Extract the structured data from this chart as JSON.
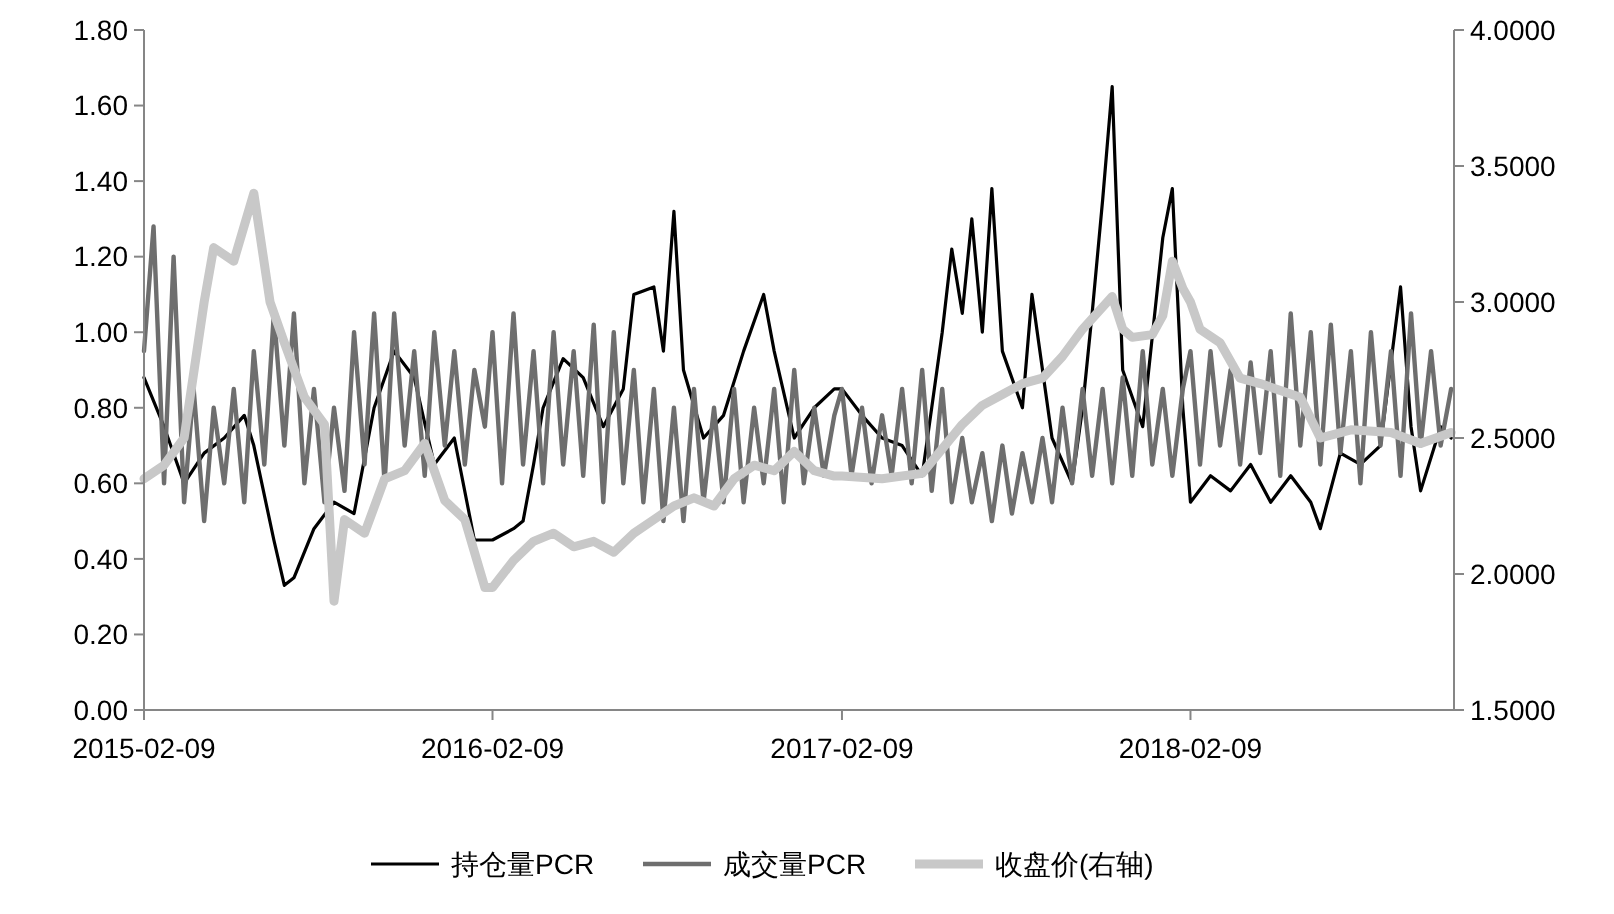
{
  "chart_data": {
    "type": "line",
    "legend": "bottom",
    "xlim": [
      "2015-02-09",
      "2018-11-12"
    ],
    "xticks": [
      {
        "value": "2015-02-09",
        "label": "2015-02-09"
      },
      {
        "value": "2016-02-09",
        "label": "2016-02-09"
      },
      {
        "value": "2017-02-09",
        "label": "2017-02-09"
      },
      {
        "value": "2018-02-09",
        "label": "2018-02-09"
      }
    ],
    "ylim": [
      0,
      1.8
    ],
    "yticks": [
      {
        "value": 0,
        "label": "0.00"
      },
      {
        "value": 0.2,
        "label": "0.20"
      },
      {
        "value": 0.4,
        "label": "0.40"
      },
      {
        "value": 0.6,
        "label": "0.60"
      },
      {
        "value": 0.8,
        "label": "0.80"
      },
      {
        "value": 1,
        "label": "1.00"
      },
      {
        "value": 1.2,
        "label": "1.20"
      },
      {
        "value": 1.4,
        "label": "1.40"
      },
      {
        "value": 1.6,
        "label": "1.60"
      },
      {
        "value": 1.8,
        "label": "1.80"
      }
    ],
    "y2lim": [
      1.5,
      4
    ],
    "y2ticks": [
      {
        "value": 1.5,
        "label": "1.5000"
      },
      {
        "value": 2,
        "label": "2.0000"
      },
      {
        "value": 2.5,
        "label": "2.5000"
      },
      {
        "value": 3,
        "label": "3.0000"
      },
      {
        "value": 3.5,
        "label": "3.5000"
      },
      {
        "value": 4,
        "label": "4.0000"
      }
    ],
    "series": [
      {
        "name": "持仓量PCR",
        "color": "#000000",
        "x": [
          "2015-02-09",
          "2015-03-02",
          "2015-03-23",
          "2015-04-13",
          "2015-05-04",
          "2015-05-25",
          "2015-06-04",
          "2015-06-25",
          "2015-07-06",
          "2015-07-16",
          "2015-08-06",
          "2015-08-27",
          "2015-09-17",
          "2015-10-08",
          "2015-10-29",
          "2015-11-19",
          "2015-12-10",
          "2015-12-31",
          "2016-01-21",
          "2016-02-09",
          "2016-03-02",
          "2016-03-12",
          "2016-03-23",
          "2016-04-02",
          "2016-04-23",
          "2016-05-14",
          "2016-06-04",
          "2016-06-25",
          "2016-07-06",
          "2016-07-27",
          "2016-08-06",
          "2016-08-17",
          "2016-08-27",
          "2016-09-17",
          "2016-10-08",
          "2016-10-29",
          "2016-11-19",
          "2016-11-30",
          "2016-12-21",
          "2017-01-11",
          "2017-02-01",
          "2017-02-09",
          "2017-03-02",
          "2017-03-23",
          "2017-04-13",
          "2017-05-04",
          "2017-05-14",
          "2017-05-25",
          "2017-06-04",
          "2017-06-15",
          "2017-06-25",
          "2017-07-06",
          "2017-07-16",
          "2017-07-27",
          "2017-08-17",
          "2017-08-27",
          "2017-09-17",
          "2017-10-08",
          "2017-10-19",
          "2017-10-29",
          "2017-11-09",
          "2017-11-19",
          "2017-11-30",
          "2017-12-21",
          "2018-01-11",
          "2018-01-21",
          "2018-02-01",
          "2018-02-09",
          "2018-03-02",
          "2018-03-23",
          "2018-04-13",
          "2018-05-04",
          "2018-05-25",
          "2018-06-15",
          "2018-06-25",
          "2018-07-16",
          "2018-08-06",
          "2018-08-27",
          "2018-09-17",
          "2018-09-28",
          "2018-10-08",
          "2018-10-29",
          "2018-11-09"
        ],
        "values": [
          0.88,
          0.75,
          0.6,
          0.68,
          0.72,
          0.78,
          0.7,
          0.45,
          0.33,
          0.35,
          0.48,
          0.55,
          0.52,
          0.8,
          0.95,
          0.88,
          0.65,
          0.72,
          0.45,
          0.45,
          0.48,
          0.5,
          0.65,
          0.8,
          0.93,
          0.88,
          0.75,
          0.85,
          1.1,
          1.12,
          0.95,
          1.32,
          0.9,
          0.72,
          0.78,
          0.95,
          1.1,
          0.95,
          0.72,
          0.8,
          0.85,
          0.85,
          0.78,
          0.72,
          0.7,
          0.62,
          0.8,
          1.0,
          1.22,
          1.05,
          1.3,
          1.0,
          1.38,
          0.95,
          0.8,
          1.1,
          0.72,
          0.6,
          0.8,
          1.05,
          1.35,
          1.65,
          0.9,
          0.75,
          1.25,
          1.38,
          0.8,
          0.55,
          0.62,
          0.58,
          0.65,
          0.55,
          0.62,
          0.55,
          0.48,
          0.68,
          0.65,
          0.7,
          1.12,
          0.75,
          0.58,
          0.75,
          0.72
        ]
      },
      {
        "name": "成交量PCR",
        "color": "#6e6e6e",
        "x": [
          "2015-02-09",
          "2015-02-19",
          "2015-03-02",
          "2015-03-12",
          "2015-03-23",
          "2015-04-02",
          "2015-04-13",
          "2015-04-23",
          "2015-05-04",
          "2015-05-14",
          "2015-05-25",
          "2015-06-04",
          "2015-06-15",
          "2015-06-25",
          "2015-07-06",
          "2015-07-16",
          "2015-07-27",
          "2015-08-06",
          "2015-08-17",
          "2015-08-27",
          "2015-09-07",
          "2015-09-17",
          "2015-09-28",
          "2015-10-08",
          "2015-10-19",
          "2015-10-29",
          "2015-11-09",
          "2015-11-19",
          "2015-11-30",
          "2015-12-10",
          "2015-12-21",
          "2015-12-31",
          "2016-01-11",
          "2016-01-21",
          "2016-02-01",
          "2016-02-09",
          "2016-02-19",
          "2016-03-02",
          "2016-03-12",
          "2016-03-23",
          "2016-04-02",
          "2016-04-13",
          "2016-04-23",
          "2016-05-04",
          "2016-05-14",
          "2016-05-25",
          "2016-06-04",
          "2016-06-15",
          "2016-06-25",
          "2016-07-06",
          "2016-07-16",
          "2016-07-27",
          "2016-08-06",
          "2016-08-17",
          "2016-08-27",
          "2016-09-07",
          "2016-09-17",
          "2016-09-28",
          "2016-10-08",
          "2016-10-19",
          "2016-10-29",
          "2016-11-09",
          "2016-11-19",
          "2016-11-30",
          "2016-12-10",
          "2016-12-21",
          "2016-12-31",
          "2017-01-11",
          "2017-01-21",
          "2017-02-01",
          "2017-02-09",
          "2017-02-19",
          "2017-03-02",
          "2017-03-12",
          "2017-03-23",
          "2017-04-02",
          "2017-04-13",
          "2017-04-23",
          "2017-05-04",
          "2017-05-14",
          "2017-05-25",
          "2017-06-04",
          "2017-06-15",
          "2017-06-25",
          "2017-07-06",
          "2017-07-16",
          "2017-07-27",
          "2017-08-06",
          "2017-08-17",
          "2017-08-27",
          "2017-09-07",
          "2017-09-17",
          "2017-09-28",
          "2017-10-08",
          "2017-10-19",
          "2017-10-29",
          "2017-11-09",
          "2017-11-19",
          "2017-11-30",
          "2017-12-10",
          "2017-12-21",
          "2017-12-31",
          "2018-01-11",
          "2018-01-21",
          "2018-02-01",
          "2018-02-09",
          "2018-02-19",
          "2018-03-02",
          "2018-03-12",
          "2018-03-23",
          "2018-04-02",
          "2018-04-13",
          "2018-04-23",
          "2018-05-04",
          "2018-05-14",
          "2018-05-25",
          "2018-06-04",
          "2018-06-15",
          "2018-06-25",
          "2018-07-06",
          "2018-07-16",
          "2018-07-27",
          "2018-08-06",
          "2018-08-17",
          "2018-08-27",
          "2018-09-07",
          "2018-09-17",
          "2018-09-28",
          "2018-10-08",
          "2018-10-19",
          "2018-10-29",
          "2018-11-09"
        ],
        "values": [
          0.95,
          1.28,
          0.6,
          1.2,
          0.55,
          0.85,
          0.5,
          0.8,
          0.6,
          0.85,
          0.55,
          0.95,
          0.65,
          1.05,
          0.7,
          1.05,
          0.6,
          0.85,
          0.55,
          0.8,
          0.58,
          1.0,
          0.65,
          1.05,
          0.6,
          1.05,
          0.7,
          0.95,
          0.62,
          1.0,
          0.7,
          0.95,
          0.65,
          0.9,
          0.75,
          1.0,
          0.6,
          1.05,
          0.65,
          0.95,
          0.6,
          1.0,
          0.65,
          0.95,
          0.62,
          1.02,
          0.55,
          1.0,
          0.6,
          0.9,
          0.55,
          0.85,
          0.5,
          0.8,
          0.5,
          0.85,
          0.55,
          0.8,
          0.55,
          0.85,
          0.55,
          0.8,
          0.6,
          0.85,
          0.55,
          0.9,
          0.6,
          0.8,
          0.62,
          0.78,
          0.85,
          0.62,
          0.8,
          0.6,
          0.78,
          0.62,
          0.85,
          0.6,
          0.9,
          0.58,
          0.85,
          0.55,
          0.72,
          0.55,
          0.68,
          0.5,
          0.7,
          0.52,
          0.68,
          0.55,
          0.72,
          0.55,
          0.8,
          0.6,
          0.85,
          0.62,
          0.85,
          0.6,
          0.88,
          0.62,
          0.95,
          0.65,
          0.85,
          0.62,
          0.85,
          0.95,
          0.65,
          0.95,
          0.7,
          0.9,
          0.65,
          0.92,
          0.68,
          0.95,
          0.62,
          1.05,
          0.7,
          1.0,
          0.65,
          1.02,
          0.68,
          0.95,
          0.6,
          1.0,
          0.7,
          0.95,
          0.62,
          1.05,
          0.7,
          0.95,
          0.7,
          0.85
        ]
      },
      {
        "name": "收盘价(右轴)",
        "color": "#c8c8c8",
        "axis": "y2",
        "x": [
          "2015-02-09",
          "2015-03-02",
          "2015-03-23",
          "2015-04-13",
          "2015-04-23",
          "2015-05-14",
          "2015-06-04",
          "2015-06-21",
          "2015-07-06",
          "2015-07-27",
          "2015-08-17",
          "2015-08-27",
          "2015-09-07",
          "2015-09-28",
          "2015-10-19",
          "2015-11-09",
          "2015-11-30",
          "2015-12-21",
          "2016-01-11",
          "2016-02-01",
          "2016-02-09",
          "2016-03-02",
          "2016-03-23",
          "2016-04-13",
          "2016-05-04",
          "2016-05-25",
          "2016-06-15",
          "2016-07-06",
          "2016-07-27",
          "2016-08-17",
          "2016-09-07",
          "2016-09-28",
          "2016-10-19",
          "2016-11-09",
          "2016-11-30",
          "2016-12-21",
          "2017-01-11",
          "2017-02-01",
          "2017-02-09",
          "2017-03-23",
          "2017-04-13",
          "2017-05-04",
          "2017-05-25",
          "2017-06-15",
          "2017-07-06",
          "2017-07-27",
          "2017-08-17",
          "2017-09-07",
          "2017-09-28",
          "2017-10-19",
          "2017-11-19",
          "2017-11-30",
          "2017-12-10",
          "2017-12-31",
          "2018-01-11",
          "2018-01-21",
          "2018-02-01",
          "2018-02-09",
          "2018-02-19",
          "2018-03-12",
          "2018-04-02",
          "2018-04-23",
          "2018-06-04",
          "2018-06-25",
          "2018-07-27",
          "2018-09-07",
          "2018-10-08",
          "2018-11-09"
        ],
        "values": [
          2.35,
          2.4,
          2.5,
          3.0,
          3.2,
          3.15,
          3.4,
          3.0,
          2.85,
          2.65,
          2.55,
          1.9,
          2.2,
          2.15,
          2.35,
          2.38,
          2.48,
          2.27,
          2.2,
          1.95,
          1.95,
          2.05,
          2.12,
          2.15,
          2.1,
          2.12,
          2.08,
          2.15,
          2.2,
          2.25,
          2.28,
          2.25,
          2.35,
          2.4,
          2.38,
          2.45,
          2.38,
          2.36,
          2.36,
          2.35,
          2.36,
          2.37,
          2.46,
          2.55,
          2.62,
          2.66,
          2.7,
          2.72,
          2.8,
          2.9,
          3.02,
          2.9,
          2.87,
          2.88,
          2.95,
          3.15,
          3.05,
          3.0,
          2.9,
          2.85,
          2.72,
          2.7,
          2.65,
          2.5,
          2.53,
          2.52,
          2.48,
          2.52
        ]
      }
    ]
  }
}
